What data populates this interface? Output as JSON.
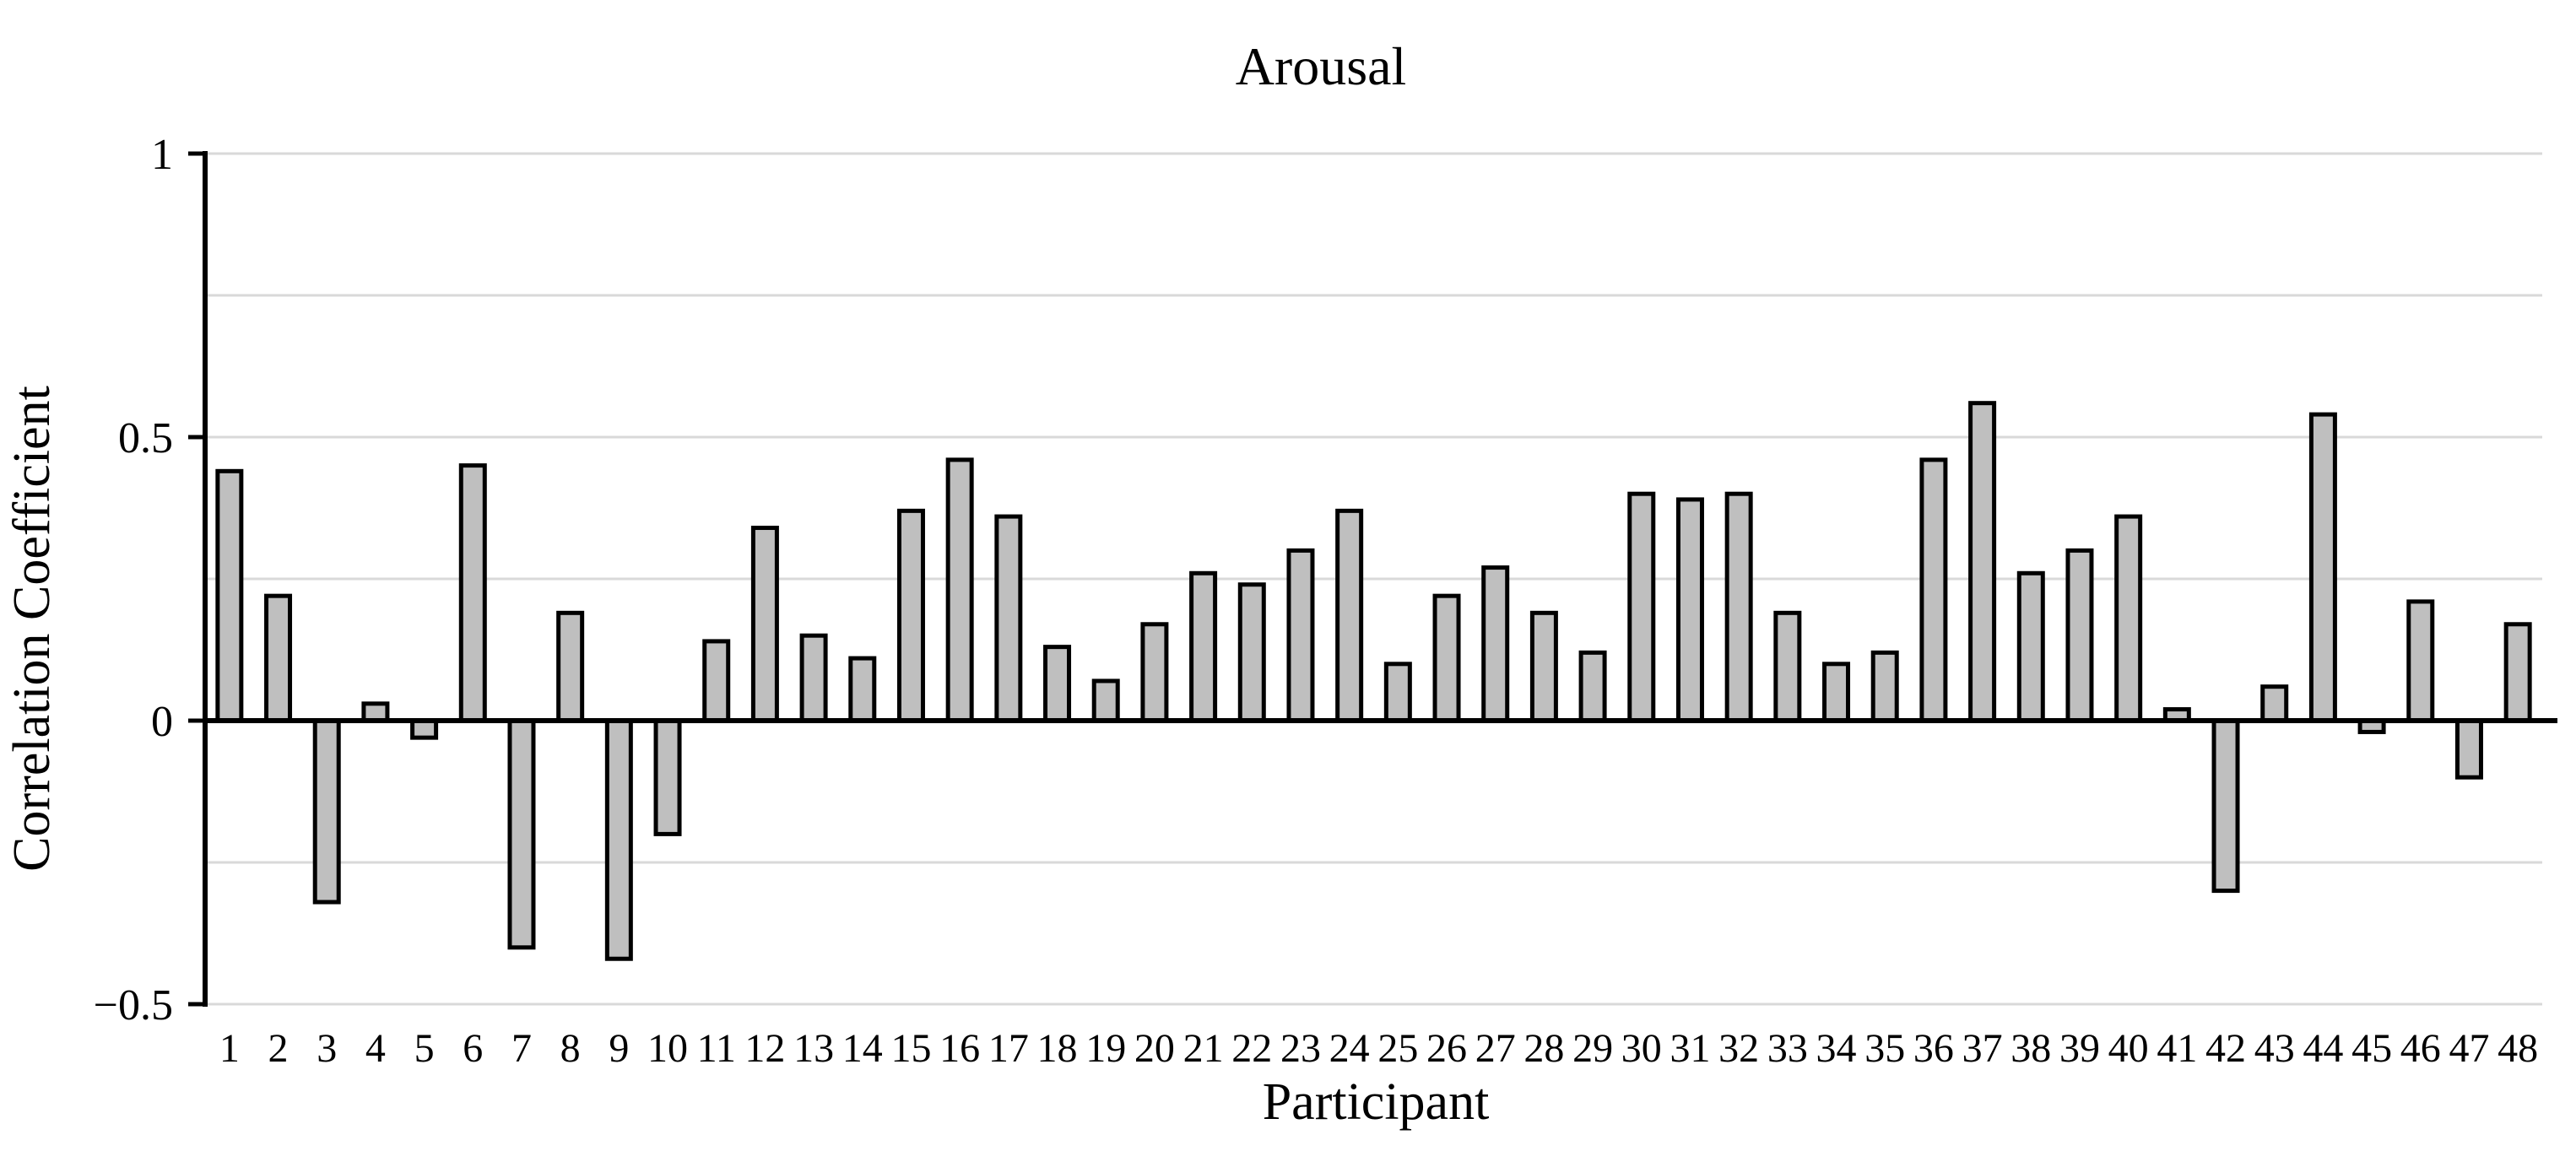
{
  "chart_data": {
    "type": "bar",
    "title": "Arousal",
    "xlabel": "Participant",
    "ylabel": "Correlation Coefficient",
    "categories": [
      "1",
      "2",
      "3",
      "4",
      "5",
      "6",
      "7",
      "8",
      "9",
      "10",
      "11",
      "12",
      "13",
      "14",
      "15",
      "16",
      "17",
      "18",
      "19",
      "20",
      "21",
      "22",
      "23",
      "24",
      "25",
      "26",
      "27",
      "28",
      "29",
      "30",
      "31",
      "32",
      "33",
      "34",
      "35",
      "36",
      "37",
      "38",
      "39",
      "40",
      "41",
      "42",
      "43",
      "44",
      "45",
      "46",
      "47",
      "48"
    ],
    "values": [
      0.44,
      0.22,
      -0.32,
      0.03,
      -0.03,
      0.45,
      -0.4,
      0.19,
      -0.42,
      -0.2,
      0.14,
      0.34,
      0.15,
      0.11,
      0.37,
      0.46,
      0.36,
      0.13,
      0.07,
      0.17,
      0.26,
      0.24,
      0.3,
      0.37,
      0.1,
      0.22,
      0.27,
      0.19,
      0.12,
      0.4,
      0.39,
      0.4,
      0.19,
      0.1,
      0.12,
      0.46,
      0.56,
      0.26,
      0.3,
      0.36,
      0.02,
      -0.3,
      0.06,
      0.54,
      -0.02,
      0.21,
      -0.1,
      0.17
    ],
    "ylim": [
      -0.5,
      1
    ],
    "ytick_values": [
      1,
      0.5,
      0,
      -0.5
    ],
    "ytick_labels": [
      "1",
      "0.5",
      "0",
      "−0.5"
    ],
    "gridline_values": [
      1,
      0.75,
      0.5,
      0.25,
      -0.25,
      -0.5
    ],
    "grid": "horizontal",
    "legend": "none",
    "series_name": "Correlation Coefficient by Participant",
    "colors": {
      "bar_fill": "#bfbfbf",
      "bar_stroke": "#000000",
      "gridline": "#d9d9d9",
      "axis": "#000000",
      "background": "#ffffff",
      "text": "#000000"
    }
  }
}
